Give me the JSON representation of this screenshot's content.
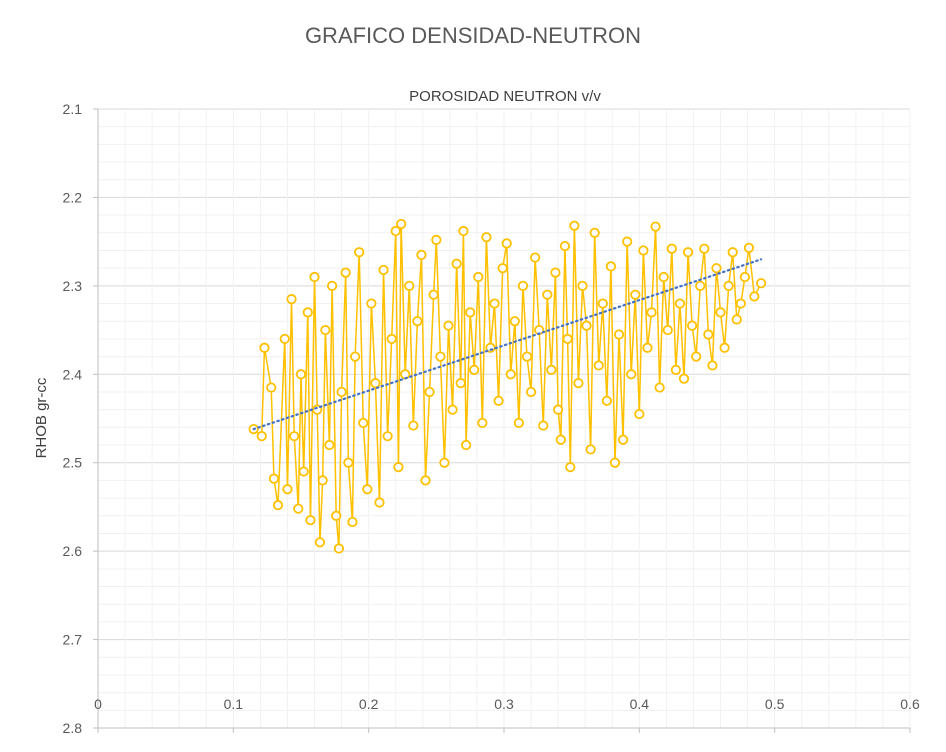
{
  "chart_data": {
    "type": "scatter",
    "title": "GRAFICO DENSIDAD-NEUTRON",
    "xlabel": "POROSIDAD NEUTRON v/v",
    "ylabel": "RHOB gr-cc",
    "xlim": [
      0,
      0.6
    ],
    "ylim": [
      2.8,
      2.1
    ],
    "y_axis_reversed": true,
    "x_axis_position": "top",
    "x_ticks": [
      "0",
      "0.1",
      "0.2",
      "0.3",
      "0.4",
      "0.5",
      "0.6"
    ],
    "y_ticks": [
      "2.1",
      "2.2",
      "2.3",
      "2.4",
      "2.5",
      "2.6",
      "2.7",
      "2.8"
    ],
    "grid": true,
    "legend": "none",
    "series": [
      {
        "marker_color": "#ffc000",
        "connected": true,
        "points": [
          [
            0.115,
            2.462
          ],
          [
            0.121,
            2.47
          ],
          [
            0.123,
            2.37
          ],
          [
            0.128,
            2.415
          ],
          [
            0.13,
            2.518
          ],
          [
            0.133,
            2.548
          ],
          [
            0.138,
            2.36
          ],
          [
            0.14,
            2.53
          ],
          [
            0.143,
            2.315
          ],
          [
            0.145,
            2.47
          ],
          [
            0.148,
            2.552
          ],
          [
            0.15,
            2.4
          ],
          [
            0.152,
            2.51
          ],
          [
            0.155,
            2.33
          ],
          [
            0.157,
            2.565
          ],
          [
            0.16,
            2.29
          ],
          [
            0.162,
            2.44
          ],
          [
            0.164,
            2.59
          ],
          [
            0.166,
            2.52
          ],
          [
            0.168,
            2.35
          ],
          [
            0.171,
            2.48
          ],
          [
            0.173,
            2.3
          ],
          [
            0.176,
            2.56
          ],
          [
            0.178,
            2.597
          ],
          [
            0.18,
            2.42
          ],
          [
            0.183,
            2.285
          ],
          [
            0.185,
            2.5
          ],
          [
            0.188,
            2.567
          ],
          [
            0.19,
            2.38
          ],
          [
            0.193,
            2.262
          ],
          [
            0.196,
            2.455
          ],
          [
            0.199,
            2.53
          ],
          [
            0.202,
            2.32
          ],
          [
            0.205,
            2.41
          ],
          [
            0.208,
            2.545
          ],
          [
            0.211,
            2.282
          ],
          [
            0.214,
            2.47
          ],
          [
            0.217,
            2.36
          ],
          [
            0.22,
            2.238
          ],
          [
            0.222,
            2.505
          ],
          [
            0.224,
            2.23
          ],
          [
            0.227,
            2.4
          ],
          [
            0.23,
            2.3
          ],
          [
            0.233,
            2.458
          ],
          [
            0.236,
            2.34
          ],
          [
            0.239,
            2.265
          ],
          [
            0.242,
            2.52
          ],
          [
            0.245,
            2.42
          ],
          [
            0.248,
            2.31
          ],
          [
            0.25,
            2.248
          ],
          [
            0.253,
            2.38
          ],
          [
            0.256,
            2.5
          ],
          [
            0.259,
            2.345
          ],
          [
            0.262,
            2.44
          ],
          [
            0.265,
            2.275
          ],
          [
            0.268,
            2.41
          ],
          [
            0.27,
            2.238
          ],
          [
            0.272,
            2.48
          ],
          [
            0.275,
            2.33
          ],
          [
            0.278,
            2.395
          ],
          [
            0.281,
            2.29
          ],
          [
            0.284,
            2.455
          ],
          [
            0.287,
            2.245
          ],
          [
            0.29,
            2.37
          ],
          [
            0.293,
            2.32
          ],
          [
            0.296,
            2.43
          ],
          [
            0.299,
            2.28
          ],
          [
            0.302,
            2.252
          ],
          [
            0.305,
            2.4
          ],
          [
            0.308,
            2.34
          ],
          [
            0.311,
            2.455
          ],
          [
            0.314,
            2.3
          ],
          [
            0.317,
            2.38
          ],
          [
            0.32,
            2.42
          ],
          [
            0.323,
            2.268
          ],
          [
            0.326,
            2.35
          ],
          [
            0.329,
            2.458
          ],
          [
            0.332,
            2.31
          ],
          [
            0.335,
            2.395
          ],
          [
            0.338,
            2.285
          ],
          [
            0.34,
            2.44
          ],
          [
            0.342,
            2.474
          ],
          [
            0.345,
            2.255
          ],
          [
            0.347,
            2.36
          ],
          [
            0.349,
            2.505
          ],
          [
            0.352,
            2.232
          ],
          [
            0.355,
            2.41
          ],
          [
            0.358,
            2.3
          ],
          [
            0.361,
            2.345
          ],
          [
            0.364,
            2.485
          ],
          [
            0.367,
            2.24
          ],
          [
            0.37,
            2.39
          ],
          [
            0.373,
            2.32
          ],
          [
            0.376,
            2.43
          ],
          [
            0.379,
            2.278
          ],
          [
            0.382,
            2.5
          ],
          [
            0.385,
            2.355
          ],
          [
            0.388,
            2.474
          ],
          [
            0.391,
            2.25
          ],
          [
            0.394,
            2.4
          ],
          [
            0.397,
            2.31
          ],
          [
            0.4,
            2.445
          ],
          [
            0.403,
            2.26
          ],
          [
            0.406,
            2.37
          ],
          [
            0.409,
            2.33
          ],
          [
            0.412,
            2.233
          ],
          [
            0.415,
            2.415
          ],
          [
            0.418,
            2.29
          ],
          [
            0.421,
            2.35
          ],
          [
            0.424,
            2.258
          ],
          [
            0.427,
            2.395
          ],
          [
            0.43,
            2.32
          ],
          [
            0.433,
            2.405
          ],
          [
            0.436,
            2.262
          ],
          [
            0.439,
            2.345
          ],
          [
            0.442,
            2.38
          ],
          [
            0.445,
            2.3
          ],
          [
            0.448,
            2.258
          ],
          [
            0.451,
            2.355
          ],
          [
            0.454,
            2.39
          ],
          [
            0.457,
            2.28
          ],
          [
            0.46,
            2.33
          ],
          [
            0.463,
            2.37
          ],
          [
            0.466,
            2.3
          ],
          [
            0.469,
            2.262
          ],
          [
            0.472,
            2.338
          ],
          [
            0.475,
            2.32
          ],
          [
            0.478,
            2.29
          ],
          [
            0.481,
            2.257
          ],
          [
            0.485,
            2.312
          ],
          [
            0.49,
            2.297
          ]
        ]
      }
    ],
    "trendline": {
      "style": "dotted",
      "color": "#4472c4",
      "from": [
        0.115,
        2.462
      ],
      "to": [
        0.49,
        2.27
      ]
    }
  }
}
